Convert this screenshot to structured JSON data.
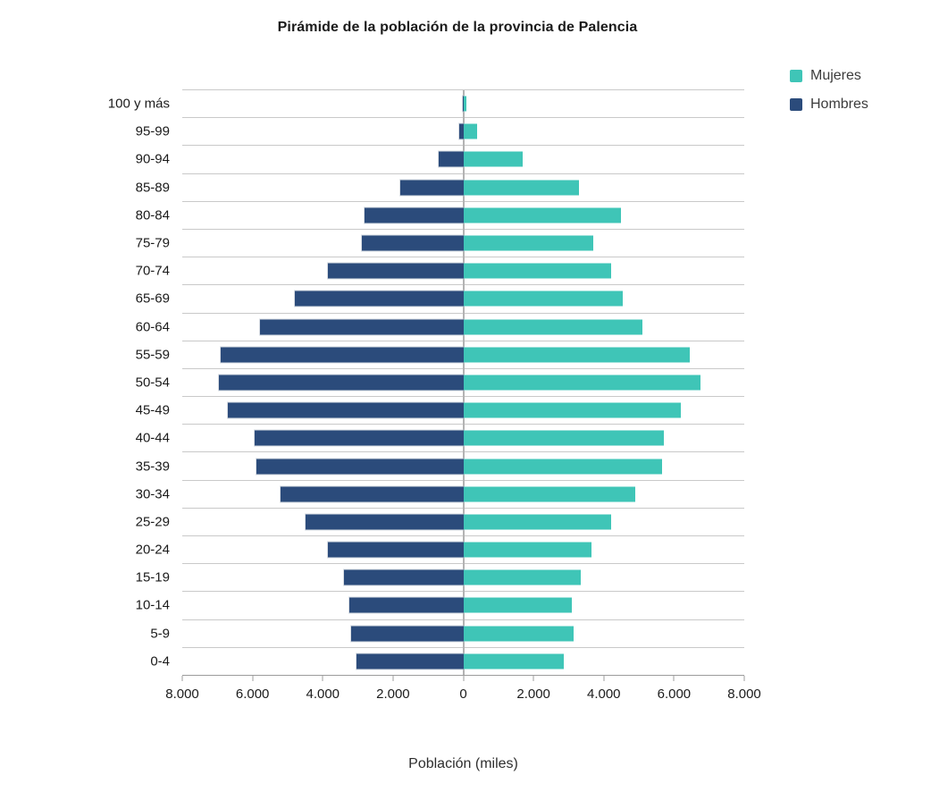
{
  "header": {
    "title": "Pirámide de la población de la provincia de Palencia"
  },
  "colors": {
    "mujeres": "#3fc5b7",
    "hombres": "#2b4b7b",
    "gridline": "#c9c9c9",
    "axis_line": "#9c9c9c",
    "center_line": "#b3b3b3"
  },
  "chart_data": {
    "type": "bar",
    "subtype": "population-pyramid",
    "orientation": "horizontal",
    "title": "Pirámide de la población de la provincia de Palencia",
    "xlabel": "Población (miles)",
    "ylabel": "",
    "xlim": [
      -8000,
      8000
    ],
    "x_tick_labels": [
      "8.000",
      "6.000",
      "4.000",
      "2.000",
      "0",
      "2.000",
      "4.000",
      "6.000",
      "8.000"
    ],
    "grid": "horizontal row separators, vertical zero line",
    "legend_position": "top-right",
    "categories": [
      "100 y más",
      "95-99",
      "90-94",
      "85-89",
      "80-84",
      "75-79",
      "70-74",
      "65-69",
      "60-64",
      "55-59",
      "50-54",
      "45-49",
      "40-44",
      "35-39",
      "30-34",
      "25-29",
      "20-24",
      "15-19",
      "10-14",
      "5-9",
      "0-4"
    ],
    "series": [
      {
        "name": "Mujeres",
        "side": "right",
        "color": "#3fc5b7",
        "values": [
          100,
          400,
          1700,
          3300,
          4500,
          3700,
          4200,
          4550,
          5100,
          6450,
          6750,
          6200,
          5700,
          5650,
          4900,
          4200,
          3650,
          3350,
          3100,
          3150,
          2850
        ]
      },
      {
        "name": "Hombres",
        "side": "left",
        "color": "#2b4b7b",
        "values": [
          25,
          125,
          700,
          1800,
          2800,
          2900,
          3850,
          4800,
          5800,
          6900,
          6950,
          6700,
          5950,
          5900,
          5200,
          4500,
          3850,
          3400,
          3250,
          3200,
          3050
        ]
      }
    ]
  }
}
